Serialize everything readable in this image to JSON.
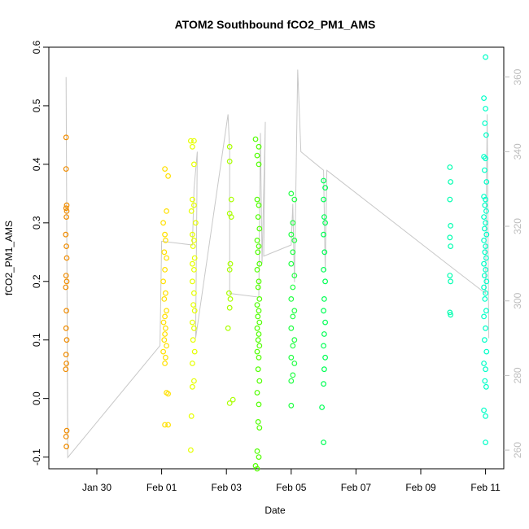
{
  "chart_data": {
    "type": "scatter",
    "title": "ATOM2 Southbound fCO2_PM1_AMS",
    "xlabel": "Date",
    "ylabel": "fCO2_PM1_AMS",
    "x_unit": "days since Jan 30",
    "xlim": [
      -0.7,
      11.3
    ],
    "ylim": [
      -0.12,
      0.6
    ],
    "y2lim": [
      255.0,
      368.0
    ],
    "x_ticks": [
      {
        "v": 0,
        "label": "Jan 30"
      },
      {
        "v": 2,
        "label": "Feb 01"
      },
      {
        "v": 4,
        "label": "Feb 03"
      },
      {
        "v": 6,
        "label": "Feb 05"
      },
      {
        "v": 8,
        "label": "Feb 07"
      },
      {
        "v": 10,
        "label": "Feb 09"
      },
      {
        "v": 12,
        "label": "Feb 11"
      }
    ],
    "y_ticks": [
      -0.1,
      0.0,
      0.1,
      0.2,
      0.3,
      0.4,
      0.5,
      0.6
    ],
    "y2_ticks": [
      260,
      280,
      300,
      320,
      340,
      360
    ],
    "secondary_line_color": "#c8c8c8",
    "secondary_line": [
      [
        -0.9,
        265
      ],
      [
        -0.95,
        360
      ],
      [
        -0.9,
        258
      ],
      [
        1.95,
        288
      ],
      [
        2.0,
        316
      ],
      [
        2.95,
        315
      ],
      [
        3.0,
        330
      ],
      [
        3.1,
        340
      ],
      [
        3.05,
        290
      ],
      [
        4.05,
        350
      ],
      [
        4.1,
        340
      ],
      [
        4.1,
        302
      ],
      [
        5.0,
        301
      ],
      [
        5.05,
        345
      ],
      [
        5.1,
        310
      ],
      [
        5.2,
        348
      ],
      [
        5.15,
        312
      ],
      [
        6.0,
        315
      ],
      [
        6.05,
        326
      ],
      [
        6.1,
        305
      ],
      [
        6.2,
        362
      ],
      [
        6.3,
        340
      ],
      [
        7.0,
        335
      ],
      [
        7.05,
        308
      ],
      [
        7.1,
        335
      ],
      [
        11.1,
        308
      ],
      [
        12.0,
        302
      ],
      [
        12.05,
        350
      ],
      [
        12.1,
        290
      ]
    ],
    "series": [
      {
        "color": "#f08c00",
        "points": [
          [
            -0.95,
            0.446
          ],
          [
            -0.95,
            0.392
          ],
          [
            -0.93,
            0.33
          ],
          [
            -0.95,
            0.325
          ],
          [
            -0.93,
            0.32
          ],
          [
            -0.94,
            0.31
          ],
          [
            -0.96,
            0.28
          ],
          [
            -0.94,
            0.26
          ],
          [
            -0.93,
            0.24
          ],
          [
            -0.95,
            0.21
          ],
          [
            -0.93,
            0.2
          ],
          [
            -0.96,
            0.19
          ],
          [
            -0.94,
            0.15
          ],
          [
            -0.95,
            0.12
          ],
          [
            -0.93,
            0.1
          ],
          [
            -0.95,
            0.075
          ],
          [
            -0.94,
            0.06
          ],
          [
            -0.96,
            0.05
          ],
          [
            -0.93,
            -0.055
          ],
          [
            -0.95,
            -0.065
          ],
          [
            -0.94,
            -0.082
          ]
        ]
      },
      {
        "color": "#ffe000",
        "points": [
          [
            2.1,
            0.392
          ],
          [
            2.2,
            0.38
          ],
          [
            2.15,
            0.32
          ],
          [
            2.05,
            0.3
          ],
          [
            2.1,
            0.28
          ],
          [
            2.12,
            0.27
          ],
          [
            2.08,
            0.25
          ],
          [
            2.15,
            0.24
          ],
          [
            2.1,
            0.22
          ],
          [
            2.05,
            0.2
          ],
          [
            2.12,
            0.18
          ],
          [
            2.08,
            0.17
          ],
          [
            2.15,
            0.15
          ],
          [
            2.1,
            0.14
          ],
          [
            2.06,
            0.13
          ],
          [
            2.12,
            0.12
          ],
          [
            2.1,
            0.11
          ],
          [
            2.08,
            0.1
          ],
          [
            2.15,
            0.09
          ],
          [
            2.05,
            0.08
          ],
          [
            2.12,
            0.07
          ],
          [
            2.1,
            0.06
          ],
          [
            2.15,
            0.01
          ],
          [
            2.2,
            0.008
          ],
          [
            2.1,
            -0.045
          ],
          [
            2.2,
            -0.045
          ]
        ]
      },
      {
        "color": "#e6ff00",
        "points": [
          [
            2.9,
            0.44
          ],
          [
            3.0,
            0.44
          ],
          [
            2.95,
            0.43
          ],
          [
            3.0,
            0.4
          ],
          [
            2.95,
            0.34
          ],
          [
            3.0,
            0.33
          ],
          [
            2.92,
            0.32
          ],
          [
            3.05,
            0.3
          ],
          [
            2.95,
            0.28
          ],
          [
            3.0,
            0.27
          ],
          [
            2.97,
            0.26
          ],
          [
            3.02,
            0.24
          ],
          [
            2.95,
            0.23
          ],
          [
            3.0,
            0.22
          ],
          [
            2.95,
            0.2
          ],
          [
            3.0,
            0.18
          ],
          [
            2.98,
            0.16
          ],
          [
            3.02,
            0.15
          ],
          [
            2.95,
            0.13
          ],
          [
            3.0,
            0.12
          ],
          [
            2.97,
            0.1
          ],
          [
            3.02,
            0.08
          ],
          [
            2.95,
            0.06
          ],
          [
            3.0,
            0.03
          ],
          [
            2.95,
            0.02
          ],
          [
            2.92,
            -0.03
          ],
          [
            2.9,
            -0.088
          ]
        ]
      },
      {
        "color": "#aaff00",
        "points": [
          [
            4.1,
            0.43
          ],
          [
            4.1,
            0.405
          ],
          [
            4.15,
            0.34
          ],
          [
            4.1,
            0.316
          ],
          [
            4.15,
            0.31
          ],
          [
            4.12,
            0.23
          ],
          [
            4.1,
            0.22
          ],
          [
            4.08,
            0.18
          ],
          [
            4.12,
            0.17
          ],
          [
            4.1,
            0.155
          ],
          [
            4.05,
            0.12
          ],
          [
            4.2,
            -0.002
          ],
          [
            4.1,
            -0.008
          ]
        ]
      },
      {
        "color": "#50ff00",
        "points": [
          [
            4.9,
            0.443
          ],
          [
            5.0,
            0.43
          ],
          [
            4.95,
            0.415
          ],
          [
            5.0,
            0.4
          ],
          [
            4.95,
            0.34
          ],
          [
            5.0,
            0.33
          ],
          [
            4.98,
            0.31
          ],
          [
            5.02,
            0.29
          ],
          [
            4.95,
            0.27
          ],
          [
            5.0,
            0.26
          ],
          [
            4.97,
            0.25
          ],
          [
            5.02,
            0.23
          ],
          [
            4.95,
            0.22
          ],
          [
            5.0,
            0.2
          ],
          [
            4.98,
            0.19
          ],
          [
            5.02,
            0.17
          ],
          [
            4.95,
            0.16
          ],
          [
            5.0,
            0.15
          ],
          [
            4.97,
            0.14
          ],
          [
            5.02,
            0.13
          ],
          [
            4.95,
            0.12
          ],
          [
            5.0,
            0.11
          ],
          [
            4.98,
            0.1
          ],
          [
            5.02,
            0.09
          ],
          [
            4.95,
            0.08
          ],
          [
            5.0,
            0.07
          ],
          [
            4.98,
            0.05
          ],
          [
            5.02,
            0.03
          ],
          [
            4.95,
            0.01
          ],
          [
            5.0,
            -0.01
          ],
          [
            4.98,
            -0.04
          ],
          [
            5.02,
            -0.05
          ],
          [
            4.95,
            -0.09
          ],
          [
            5.0,
            -0.1
          ],
          [
            4.9,
            -0.115
          ],
          [
            4.95,
            -0.12
          ]
        ]
      },
      {
        "color": "#22ff44",
        "points": [
          [
            6.0,
            0.35
          ],
          [
            6.1,
            0.34
          ],
          [
            6.05,
            0.3
          ],
          [
            6.0,
            0.28
          ],
          [
            6.1,
            0.27
          ],
          [
            6.05,
            0.25
          ],
          [
            6.0,
            0.23
          ],
          [
            6.1,
            0.21
          ],
          [
            6.05,
            0.19
          ],
          [
            6.0,
            0.17
          ],
          [
            6.1,
            0.15
          ],
          [
            6.05,
            0.14
          ],
          [
            6.0,
            0.12
          ],
          [
            6.1,
            0.1
          ],
          [
            6.05,
            0.09
          ],
          [
            6.0,
            0.07
          ],
          [
            6.1,
            0.06
          ],
          [
            6.05,
            0.04
          ],
          [
            6.0,
            0.03
          ],
          [
            6.0,
            -0.012
          ]
        ]
      },
      {
        "color": "#00ff55",
        "points": [
          [
            7.0,
            0.372
          ],
          [
            7.05,
            0.36
          ],
          [
            7.0,
            0.34
          ],
          [
            7.02,
            0.31
          ],
          [
            7.05,
            0.3
          ],
          [
            7.0,
            0.28
          ],
          [
            7.03,
            0.25
          ],
          [
            7.0,
            0.22
          ],
          [
            7.05,
            0.2
          ],
          [
            7.02,
            0.17
          ],
          [
            7.0,
            0.15
          ],
          [
            7.05,
            0.13
          ],
          [
            7.02,
            0.11
          ],
          [
            7.0,
            0.09
          ],
          [
            7.05,
            0.07
          ],
          [
            7.02,
            0.05
          ],
          [
            7.0,
            0.025
          ],
          [
            6.95,
            -0.015
          ],
          [
            7.0,
            -0.075
          ]
        ]
      },
      {
        "color": "#00ffb0",
        "points": [
          [
            10.9,
            0.395
          ],
          [
            10.92,
            0.37
          ],
          [
            10.9,
            0.34
          ],
          [
            10.92,
            0.295
          ],
          [
            10.9,
            0.275
          ],
          [
            10.92,
            0.26
          ],
          [
            10.9,
            0.21
          ],
          [
            10.92,
            0.2
          ],
          [
            10.9,
            0.147
          ],
          [
            10.92,
            0.143
          ]
        ]
      },
      {
        "color": "#00ffc8",
        "points": [
          [
            12.0,
            0.583
          ],
          [
            11.95,
            0.513
          ],
          [
            12.0,
            0.495
          ],
          [
            11.98,
            0.47
          ],
          [
            12.02,
            0.45
          ],
          [
            11.95,
            0.413
          ],
          [
            12.0,
            0.41
          ],
          [
            11.97,
            0.39
          ],
          [
            12.03,
            0.37
          ],
          [
            11.95,
            0.345
          ],
          [
            12.0,
            0.34
          ],
          [
            11.98,
            0.33
          ],
          [
            12.02,
            0.32
          ],
          [
            11.95,
            0.31
          ],
          [
            12.0,
            0.3
          ],
          [
            11.97,
            0.29
          ],
          [
            12.03,
            0.28
          ],
          [
            11.95,
            0.27
          ],
          [
            12.0,
            0.26
          ],
          [
            11.98,
            0.25
          ],
          [
            12.02,
            0.24
          ],
          [
            11.95,
            0.23
          ],
          [
            12.0,
            0.22
          ],
          [
            11.97,
            0.21
          ],
          [
            12.03,
            0.2
          ],
          [
            11.95,
            0.19
          ],
          [
            12.0,
            0.18
          ],
          [
            11.98,
            0.17
          ],
          [
            12.02,
            0.15
          ],
          [
            11.95,
            0.14
          ],
          [
            12.0,
            0.12
          ],
          [
            11.97,
            0.1
          ],
          [
            12.03,
            0.08
          ],
          [
            11.95,
            0.06
          ],
          [
            12.0,
            0.05
          ],
          [
            11.98,
            0.03
          ],
          [
            12.02,
            0.02
          ],
          [
            11.95,
            -0.02
          ],
          [
            12.0,
            -0.03
          ],
          [
            12.0,
            -0.075
          ]
        ]
      }
    ]
  }
}
